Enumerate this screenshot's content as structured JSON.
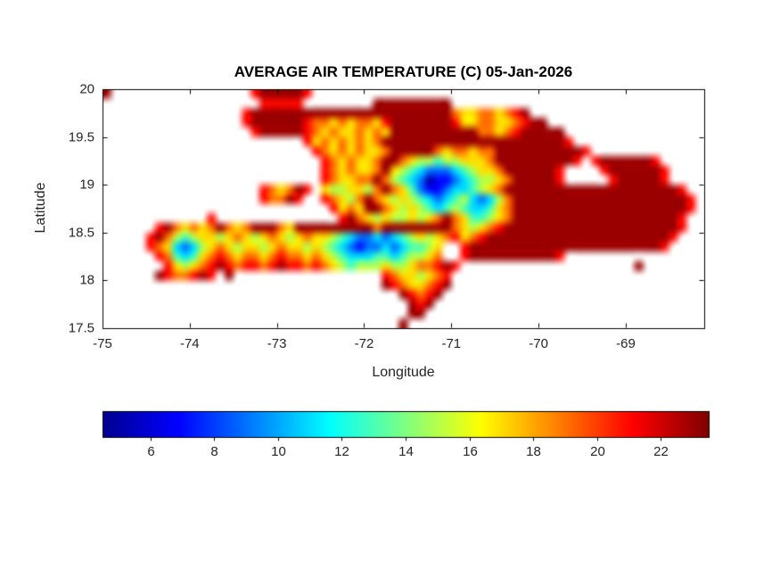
{
  "chart_data": {
    "type": "heatmap",
    "title": "AVERAGE AIR TEMPERATURE (C) 05-Jan-2026",
    "xlabel": "Longitude",
    "ylabel": "Latitude",
    "xlim": [
      -75,
      -68.1
    ],
    "ylim": [
      17.5,
      20
    ],
    "x_ticks": [
      -75,
      -74,
      -73,
      -72,
      -71,
      -70,
      -69
    ],
    "y_ticks": [
      17.5,
      18,
      18.5,
      19,
      19.5,
      20
    ],
    "grid_lines": "off",
    "colormap": "jet",
    "colormap_stops": [
      [
        0,
        "#00008F"
      ],
      [
        0.125,
        "#0000FF"
      ],
      [
        0.375,
        "#00FFFF"
      ],
      [
        0.625,
        "#FFFF00"
      ],
      [
        0.875,
        "#FF0000"
      ],
      [
        1,
        "#800000"
      ]
    ],
    "colorbar": {
      "orientation": "horizontal",
      "position": "bottom",
      "vmin": 4.5,
      "vmax": 23.5,
      "ticks": [
        6,
        8,
        10,
        12,
        14,
        16,
        18,
        20,
        22
      ]
    },
    "grid": {
      "description": "Air temperature (deg C) raster over Hispaniola; '.' = sea (no data), letters map to temperature via value_key",
      "lon_min": -75.0,
      "lon_max": -68.0,
      "lat_min": 17.5,
      "lat_max": 20.0,
      "cols": 70,
      "rows": 25,
      "value_key": {
        "a": 5,
        "b": 7,
        "c": 9,
        "d": 11,
        "e": 13,
        "f": 15,
        "g": 17,
        "h": 19,
        "i": 21,
        "j": 23,
        ".": null
      },
      "rows_data": [
        "j................ijjjjji..............................................",
        "..................iiiii........jjjjjjjjj..............................",
        "................ijjjjjjjjjjjjjjjjjjjjjjjhgghhghij.....................",
        "................ijjjjjjihhghghhgijjjjjjjigghhgghijj...................",
        ".................ijjjjjihghgghghgjjjjjjjjjjhhghijjjjj.................",
        ".......................ighghghghjjjjjjjjjjjjjjjjjjjjji................",
        "........................ihghghgghjjjjjhghhghhjjjjjjjjjji..............",
        ".........................ihghgghjjhgffeffggghjjjjjjjjji.ijjjjjji......",
        ".........................ihghgghjgfedcccdefgghjjjjjji....ijjjjjji.....",
        ".........................ihgghhjhfedcabbcdeffghjjjjji.....ijjjjji.....",
        "..................ihghji.gffggfhjhgecbbcddefghjjjjjjjjjjjjjjjjjjjji...",
        "..................ihhji..ihgfhjhgfgfedcdefdcdfhjjjjjjjjjjjjjjjjjjjji..",
        "..........................ighgjjhgfgfedefeddeghjjjjjjjjjjjjjjjjjjjji..",
        "............i..............ijhgfgffgfghjhgeefghjjjjjjjjjjjjjjjjjjji...",
        "......ijhghghjhghjjjhgjjjjjjjjjhjjjjjjjjhgfghijjjjjjjjjjjjjjjjjjjji...",
        ".....ijhfefggfghgfghgfghggfedccdcdefgfghighijjjjjjjjjjjjjjjjjjjjji....",
        ".....ihgdcdfghgfggfghggfgfedcbccdcdeefg..ijjjjjjjjjjjjjjjjjjjjjji.....",
        "......ihedeghihghhghihhghgfedddeedeffgh..ijjjjjjjjjji.................",
        ".......igfghijihiihijiihihgfefffgffghhiji....................j........",
        "......jihhiji.j.................ihggfghi..............................",
        "................................jihgghij..............................",
        "..................................jihij...............................",
        "...................................jij................................",
        "...................................jj.................................",
        "..................................j..................................."
      ]
    }
  }
}
